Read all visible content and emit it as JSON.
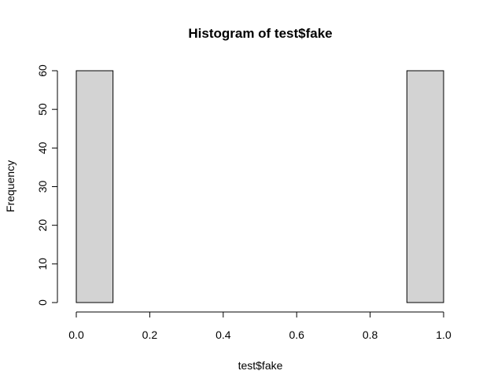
{
  "chart_data": {
    "type": "bar",
    "title": "Histogram of test$fake",
    "xlabel": "test$fake",
    "ylabel": "Frequency",
    "bins": [
      {
        "start": 0.0,
        "end": 0.1,
        "count": 60
      },
      {
        "start": 0.1,
        "end": 0.2,
        "count": 0
      },
      {
        "start": 0.2,
        "end": 0.3,
        "count": 0
      },
      {
        "start": 0.3,
        "end": 0.4,
        "count": 0
      },
      {
        "start": 0.4,
        "end": 0.5,
        "count": 0
      },
      {
        "start": 0.5,
        "end": 0.6,
        "count": 0
      },
      {
        "start": 0.6,
        "end": 0.7,
        "count": 0
      },
      {
        "start": 0.7,
        "end": 0.8,
        "count": 0
      },
      {
        "start": 0.8,
        "end": 0.9,
        "count": 0
      },
      {
        "start": 0.9,
        "end": 1.0,
        "count": 60
      }
    ],
    "xlim": [
      0,
      1
    ],
    "ylim": [
      0,
      60
    ],
    "x_ticks": [
      "0.0",
      "0.2",
      "0.4",
      "0.6",
      "0.8",
      "1.0"
    ],
    "y_ticks": [
      "0",
      "10",
      "20",
      "30",
      "40",
      "50",
      "60"
    ],
    "bar_color": "#d3d3d3",
    "grid": false,
    "legend": "none"
  }
}
